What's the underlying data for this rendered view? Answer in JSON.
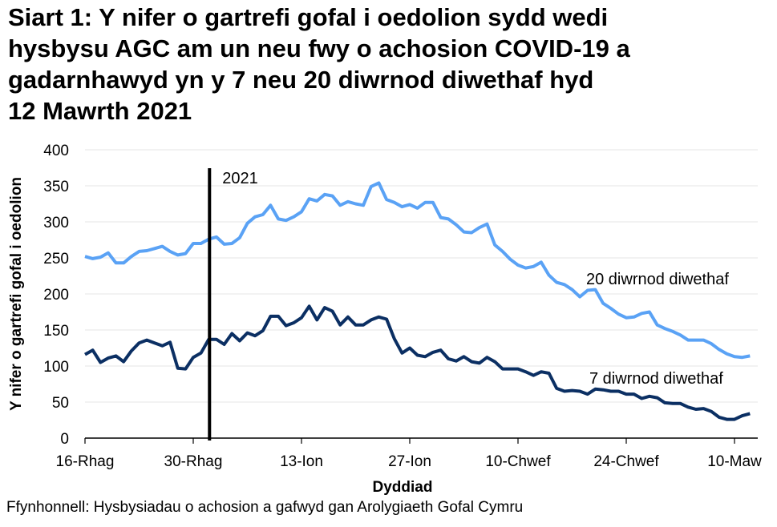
{
  "title_lines": [
    "Siart 1: Y nifer o gartrefi gofal i oedolion sydd wedi",
    "hysbysu AGC am un neu fwy o achosion COVID-19 a",
    "gadarnhawyd yn y 7 neu 20 diwrnod diwethaf hyd",
    "12 Mawrth 2021"
  ],
  "source": "Ffynhonnell: Hysbysiadau o achosion a gafwyd gan Arolygiaeth Gofal Cymru",
  "chart_data": {
    "type": "line",
    "title": "Siart 1: Y nifer o gartrefi gofal i oedolion sydd wedi hysbysu AGC am un neu fwy o achosion COVID-19 a gadarnhawyd yn y 7 neu 20 diwrnod diwethaf hyd 12 Mawrth 2021",
    "xlabel": "Dyddiad",
    "ylabel": "Y nifer o gartrefi gofal i oedolion",
    "ylim": [
      0,
      400
    ],
    "yticks": [
      0,
      50,
      100,
      150,
      200,
      250,
      300,
      350,
      400
    ],
    "xticks": [
      {
        "date": "2020-12-16",
        "label": "16-Rhag"
      },
      {
        "date": "2020-12-30",
        "label": "30-Rhag"
      },
      {
        "date": "2021-01-13",
        "label": "13-Ion"
      },
      {
        "date": "2021-01-27",
        "label": "27-Ion"
      },
      {
        "date": "2021-02-10",
        "label": "10-Chwef"
      },
      {
        "date": "2021-02-24",
        "label": "24-Chwef"
      },
      {
        "date": "2021-03-10",
        "label": "10-Maw"
      }
    ],
    "grid": "horizontal",
    "annotation": {
      "date": "2021-01-01",
      "label": "2021"
    },
    "x": [
      "2020-12-16",
      "2020-12-17",
      "2020-12-18",
      "2020-12-19",
      "2020-12-20",
      "2020-12-21",
      "2020-12-22",
      "2020-12-23",
      "2020-12-24",
      "2020-12-25",
      "2020-12-26",
      "2020-12-27",
      "2020-12-28",
      "2020-12-29",
      "2020-12-30",
      "2020-12-31",
      "2021-01-01",
      "2021-01-02",
      "2021-01-03",
      "2021-01-04",
      "2021-01-05",
      "2021-01-06",
      "2021-01-07",
      "2021-01-08",
      "2021-01-09",
      "2021-01-10",
      "2021-01-11",
      "2021-01-12",
      "2021-01-13",
      "2021-01-14",
      "2021-01-15",
      "2021-01-16",
      "2021-01-17",
      "2021-01-18",
      "2021-01-19",
      "2021-01-20",
      "2021-01-21",
      "2021-01-22",
      "2021-01-23",
      "2021-01-24",
      "2021-01-25",
      "2021-01-26",
      "2021-01-27",
      "2021-01-28",
      "2021-01-29",
      "2021-01-30",
      "2021-01-31",
      "2021-02-01",
      "2021-02-02",
      "2021-02-03",
      "2021-02-04",
      "2021-02-05",
      "2021-02-06",
      "2021-02-07",
      "2021-02-08",
      "2021-02-09",
      "2021-02-10",
      "2021-02-11",
      "2021-02-12",
      "2021-02-13",
      "2021-02-14",
      "2021-02-15",
      "2021-02-16",
      "2021-02-17",
      "2021-02-18",
      "2021-02-19",
      "2021-02-20",
      "2021-02-21",
      "2021-02-22",
      "2021-02-23",
      "2021-02-24",
      "2021-02-25",
      "2021-02-26",
      "2021-02-27",
      "2021-02-28",
      "2021-03-01",
      "2021-03-02",
      "2021-03-03",
      "2021-03-04",
      "2021-03-05",
      "2021-03-06",
      "2021-03-07",
      "2021-03-08",
      "2021-03-09",
      "2021-03-10",
      "2021-03-11",
      "2021-03-12"
    ],
    "series": [
      {
        "name": "20 diwrnod diwethaf",
        "color": "#5aa2f5",
        "values": [
          252,
          249,
          251,
          257,
          243,
          243,
          252,
          259,
          260,
          263,
          266,
          259,
          254,
          256,
          270,
          270,
          276,
          279,
          269,
          270,
          278,
          298,
          307,
          310,
          323,
          304,
          302,
          307,
          314,
          332,
          329,
          338,
          336,
          323,
          328,
          325,
          323,
          349,
          354,
          331,
          327,
          321,
          324,
          319,
          327,
          327,
          306,
          304,
          296,
          286,
          285,
          292,
          297,
          268,
          259,
          248,
          240,
          236,
          238,
          244,
          226,
          216,
          213,
          206,
          196,
          205,
          206,
          187,
          180,
          172,
          167,
          168,
          173,
          175,
          157,
          152,
          148,
          143,
          136,
          136,
          136,
          131,
          123,
          117,
          113,
          112,
          114
        ]
      },
      {
        "name": "7 diwrnod diwethaf",
        "color": "#0b2f63",
        "values": [
          116,
          122,
          105,
          111,
          114,
          106,
          121,
          132,
          136,
          132,
          128,
          133,
          97,
          96,
          112,
          118,
          137,
          137,
          130,
          145,
          135,
          146,
          142,
          149,
          169,
          169,
          156,
          160,
          167,
          183,
          164,
          181,
          176,
          157,
          168,
          157,
          157,
          164,
          168,
          165,
          138,
          118,
          125,
          115,
          113,
          119,
          122,
          110,
          107,
          113,
          106,
          104,
          112,
          106,
          96,
          96,
          96,
          92,
          87,
          92,
          90,
          69,
          65,
          66,
          65,
          61,
          68,
          67,
          65,
          65,
          61,
          61,
          55,
          58,
          56,
          49,
          48,
          48,
          43,
          40,
          41,
          37,
          29,
          26,
          26,
          31,
          34
        ]
      }
    ]
  }
}
